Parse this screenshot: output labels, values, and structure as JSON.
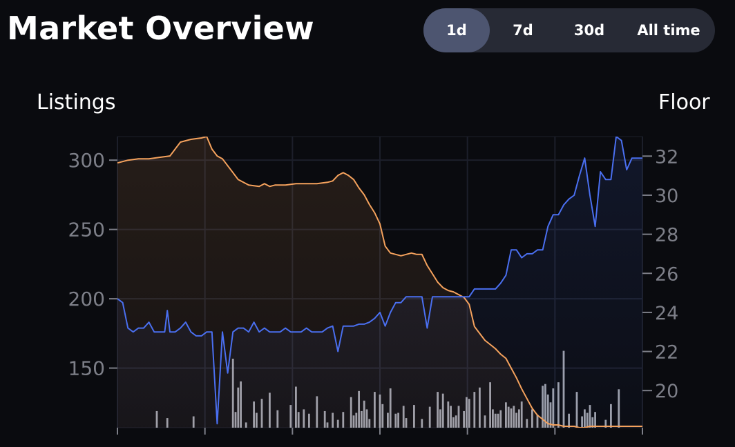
{
  "header": {
    "title": "Market Overview"
  },
  "range_selector": {
    "options": [
      "1d",
      "7d",
      "30d",
      "All time"
    ],
    "selected": "1d"
  },
  "colors": {
    "listings": "#f5a25d",
    "floor": "#4a6ff0",
    "volume": "#b9bcc6",
    "background": "#0a0b0f"
  },
  "chart_data": {
    "type": "line",
    "left_axis": {
      "label": "Listings",
      "ticks": [
        300,
        250,
        200,
        150
      ],
      "range": [
        107,
        317
      ]
    },
    "right_axis": {
      "label": "Floor",
      "ticks": [
        32,
        30,
        28,
        26,
        24,
        22,
        20
      ],
      "range": [
        18.1,
        33.0
      ]
    },
    "grid": true,
    "series": [
      {
        "name": "Listings",
        "axis": "left",
        "x": [
          0,
          2,
          4,
          6,
          8,
          10,
          12,
          14,
          16,
          17,
          18,
          19,
          20,
          21,
          22,
          23,
          25,
          27,
          28,
          29,
          30,
          32,
          34,
          36,
          38,
          40,
          41,
          42,
          43,
          44,
          45,
          46,
          47,
          48,
          49,
          50,
          51,
          52,
          53,
          54,
          55,
          56,
          57,
          58,
          59,
          60,
          61,
          62,
          63,
          64,
          65,
          66,
          67,
          68,
          69,
          70,
          71,
          72,
          73,
          74,
          75,
          76,
          77,
          78,
          79,
          80,
          81,
          82,
          83,
          84,
          85,
          86,
          87,
          88,
          89,
          90,
          91,
          92,
          93,
          94,
          95,
          96,
          97,
          98,
          99,
          100
        ],
        "values": [
          298,
          300,
          301,
          301,
          302,
          303,
          313,
          315,
          316,
          317,
          308,
          303,
          301,
          296,
          291,
          286,
          282,
          281,
          283,
          281,
          282,
          282,
          283,
          283,
          283,
          284,
          285,
          289,
          291,
          289,
          286,
          280,
          275,
          268,
          262,
          254,
          238,
          233,
          232,
          231,
          232,
          233,
          232,
          232,
          224,
          218,
          212,
          208,
          206,
          205,
          203,
          201,
          196,
          180,
          175,
          170,
          167,
          164,
          160,
          157,
          150,
          143,
          135,
          128,
          121,
          116,
          113,
          110,
          109,
          109,
          108,
          108,
          108,
          107,
          107,
          108,
          108,
          108,
          108,
          108,
          108,
          108,
          108,
          108,
          108,
          108
        ],
        "area": true
      },
      {
        "name": "Floor",
        "axis": "right",
        "x": [
          0,
          1,
          2,
          3,
          4,
          5,
          6,
          7,
          8,
          9,
          9.5,
          10,
          11,
          12,
          13,
          14,
          15,
          16,
          17,
          18,
          19,
          20,
          21,
          22,
          23,
          24,
          25,
          26,
          27,
          28,
          29,
          30,
          31,
          32,
          33,
          34,
          35,
          36,
          37,
          38,
          39,
          40,
          41,
          42,
          43,
          44,
          45,
          46,
          47,
          48,
          49,
          50,
          51,
          52,
          53,
          54,
          55,
          56,
          57,
          58,
          59,
          60,
          61,
          62,
          63,
          64,
          65,
          66,
          67,
          68,
          69,
          70,
          71,
          72,
          73,
          74,
          75,
          76,
          77,
          78,
          79,
          80,
          81,
          82,
          83,
          84,
          85,
          86,
          87,
          88,
          89,
          90,
          91,
          92,
          93,
          94,
          95,
          96,
          97,
          98,
          99,
          100
        ],
        "values": [
          24.7,
          24.5,
          23.2,
          23.0,
          23.2,
          23.2,
          23.5,
          23.0,
          23.0,
          23.0,
          24.1,
          23.0,
          23.0,
          23.2,
          23.5,
          23.0,
          22.8,
          22.8,
          23.0,
          23.0,
          18.3,
          23.0,
          20.9,
          23.0,
          23.2,
          23.2,
          23.0,
          23.5,
          23.0,
          23.2,
          23.0,
          23.0,
          23.0,
          23.2,
          23.0,
          23.0,
          23.0,
          23.2,
          23.0,
          23.0,
          23.0,
          23.2,
          23.3,
          22.0,
          23.3,
          23.3,
          23.3,
          23.4,
          23.4,
          23.5,
          23.7,
          24.0,
          23.3,
          24.0,
          24.5,
          24.5,
          24.8,
          24.8,
          24.8,
          24.8,
          23.2,
          24.8,
          24.8,
          24.8,
          24.8,
          24.8,
          24.8,
          24.8,
          24.8,
          25.2,
          25.2,
          25.2,
          25.2,
          25.2,
          25.5,
          25.9,
          27.2,
          27.2,
          26.8,
          27.0,
          27.0,
          27.2,
          27.2,
          28.4,
          29.0,
          29.0,
          29.5,
          29.8,
          30.0,
          31.0,
          31.9,
          30.0,
          28.4,
          31.2,
          30.8,
          30.8,
          33.0,
          32.8,
          31.3,
          31.9,
          31.9,
          31.9
        ],
        "area": true
      },
      {
        "name": "Volume",
        "axis": "none",
        "type": "bar",
        "x": [
          7.5,
          9.5,
          14.5,
          22,
          22.5,
          23,
          23.5,
          24.5,
          26,
          26.5,
          27.5,
          29,
          30.5,
          33,
          34,
          34.5,
          35.5,
          36.5,
          38,
          39.5,
          40,
          41,
          42,
          43,
          44.5,
          45,
          45.5,
          46,
          46.5,
          47,
          47.5,
          48,
          49,
          50,
          50.5,
          51.5,
          52,
          53,
          53.5,
          54.5,
          55,
          56.5,
          58,
          59.5,
          61,
          61.5,
          62,
          63,
          63.5,
          64,
          64.5,
          65,
          66,
          66.5,
          67,
          68,
          69,
          70,
          71,
          71.5,
          72,
          72.5,
          73,
          74,
          74.5,
          75,
          75.5,
          76,
          76.5,
          77,
          78,
          79,
          80,
          81,
          81.5,
          82,
          82.5,
          83,
          84,
          85,
          86,
          87.5,
          88.5,
          89,
          89.5,
          90,
          90.5,
          91,
          93,
          94,
          95.5
        ],
        "values": [
          0.19,
          0.11,
          0.13,
          0.79,
          0.18,
          0.46,
          0.53,
          0.06,
          0.3,
          0.17,
          0.33,
          0.4,
          0.2,
          0.26,
          0.47,
          0.18,
          0.21,
          0.16,
          0.36,
          0.19,
          0.06,
          0.17,
          0.09,
          0.18,
          0.35,
          0.14,
          0.17,
          0.42,
          0.19,
          0.31,
          0.21,
          0.1,
          0.41,
          0.38,
          0.27,
          0.17,
          0.45,
          0.16,
          0.17,
          0.25,
          0.11,
          0.26,
          0.1,
          0.24,
          0.41,
          0.21,
          0.39,
          0.3,
          0.25,
          0.12,
          0.14,
          0.25,
          0.19,
          0.35,
          0.33,
          0.41,
          0.46,
          0.14,
          0.52,
          0.21,
          0.16,
          0.16,
          0.2,
          0.29,
          0.24,
          0.22,
          0.25,
          0.17,
          0.21,
          0.3,
          0.1,
          0.21,
          0.15,
          0.48,
          0.5,
          0.38,
          0.29,
          0.45,
          0.52,
          0.88,
          0.16,
          0.41,
          0.13,
          0.21,
          0.17,
          0.26,
          0.12,
          0.18,
          0.09,
          0.27,
          0.44
        ]
      }
    ],
    "x_ticks": [
      "",
      "",
      "",
      "",
      "",
      "",
      ""
    ]
  }
}
